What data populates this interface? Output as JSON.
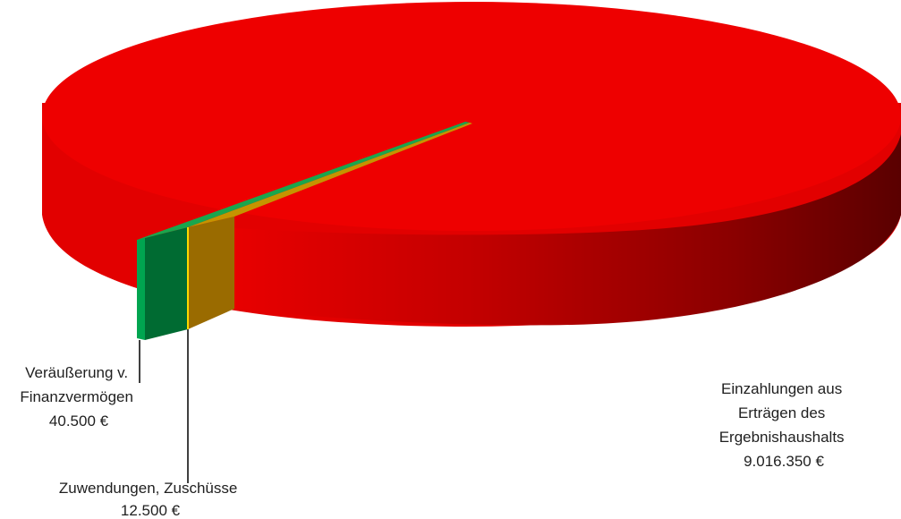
{
  "chart_data": {
    "type": "pie",
    "title": "",
    "slices": [
      {
        "label": "Einzahlungen aus Erträgen des Ergebnishaushalts",
        "label_lines": [
          "Einzahlungen aus",
          "Erträgen des",
          "Ergebnishaushalts"
        ],
        "value_text": "9.016.350 €",
        "value": 9016350,
        "color": "#e60000"
      },
      {
        "label": "Veräußerung v. Finanzvermögen",
        "label_lines": [
          "Veräußerung v.",
          "Finanzvermögen"
        ],
        "value_text": "40.500 €",
        "value": 40500,
        "color": "#00a550"
      },
      {
        "label": "Zuwendungen, Zuschüsse",
        "label_lines": [
          "Zuwendungen, Zuschüsse"
        ],
        "value_text": "12.500 €",
        "value": 12500,
        "color": "#e0b000"
      }
    ],
    "legend": "none",
    "style": "3d-pie"
  }
}
